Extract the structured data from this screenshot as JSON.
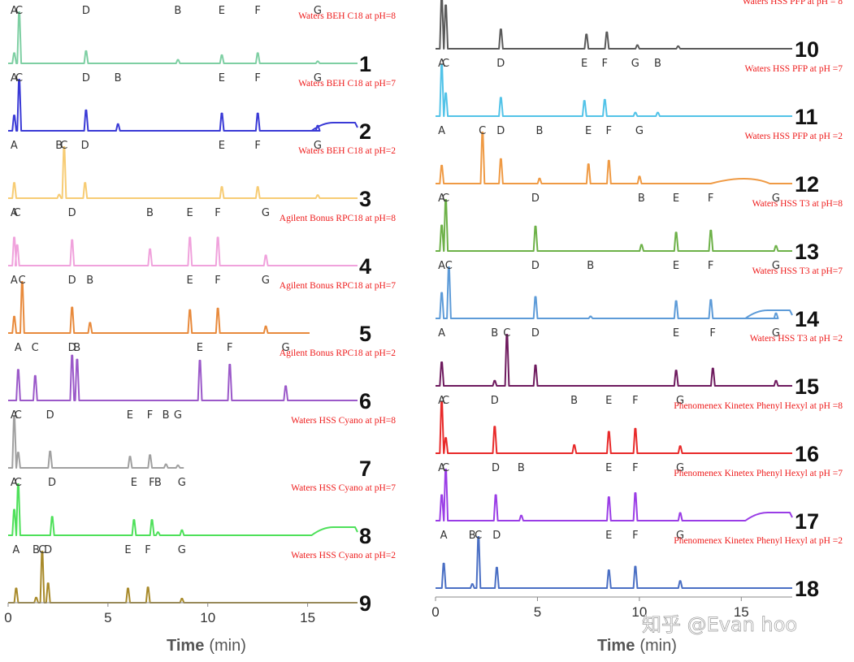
{
  "chart_data": {
    "type": "line",
    "title": "",
    "xlabel": "Time",
    "xlabel_unit": "(min)",
    "xlim": [
      0,
      17.5
    ],
    "xticks": [
      {
        "value": 0,
        "label": "0"
      },
      {
        "value": 5,
        "label": "5"
      },
      {
        "value": 10,
        "label": "10"
      },
      {
        "value": 15,
        "label": "15"
      }
    ],
    "panels": [
      {
        "number": "1",
        "label": "Waters BEH C18 at pH=8",
        "color": "#7ecfa3",
        "end": 17.5,
        "peaks": [
          {
            "name": "A",
            "t": 0.3,
            "h": 0.2
          },
          {
            "name": "C",
            "t": 0.55,
            "h": 1.0
          },
          {
            "name": "D",
            "t": 3.9,
            "h": 0.24
          },
          {
            "name": "B",
            "t": 8.5,
            "h": 0.07
          },
          {
            "name": "E",
            "t": 10.7,
            "h": 0.16
          },
          {
            "name": "F",
            "t": 12.5,
            "h": 0.2
          },
          {
            "name": "G",
            "t": 15.5,
            "h": 0.04
          }
        ]
      },
      {
        "number": "2",
        "label": "Waters BEH C18 at pH=7",
        "color": "#3a3ad6",
        "end": 17.5,
        "peaks": [
          {
            "name": "A",
            "t": 0.3,
            "h": 0.3
          },
          {
            "name": "C",
            "t": 0.55,
            "h": 1.0
          },
          {
            "name": "D",
            "t": 3.9,
            "h": 0.4
          },
          {
            "name": "B",
            "t": 5.5,
            "h": 0.13
          },
          {
            "name": "E",
            "t": 10.7,
            "h": 0.34
          },
          {
            "name": "F",
            "t": 12.5,
            "h": 0.34
          },
          {
            "name": "G",
            "t": 15.5,
            "h": 0.1
          }
        ]
      },
      {
        "number": "3",
        "label": "Waters BEH C18 at pH=2",
        "color": "#f7cc74",
        "end": 17.5,
        "peaks": [
          {
            "name": "A",
            "t": 0.3,
            "h": 0.3
          },
          {
            "name": "B",
            "t": 2.55,
            "h": 0.07
          },
          {
            "name": "C",
            "t": 2.8,
            "h": 1.0
          },
          {
            "name": "D",
            "t": 3.85,
            "h": 0.3
          },
          {
            "name": "E",
            "t": 10.7,
            "h": 0.22
          },
          {
            "name": "F",
            "t": 12.5,
            "h": 0.22
          },
          {
            "name": "G",
            "t": 15.5,
            "h": 0.06
          }
        ]
      },
      {
        "number": "4",
        "label": "Agilent Bonus RPC18 at pH=8",
        "color": "#f0a2dc",
        "end": 17.5,
        "peaks": [
          {
            "name": "A",
            "t": 0.3,
            "h": 0.55
          },
          {
            "name": "C",
            "t": 0.45,
            "h": 0.4
          },
          {
            "name": "D",
            "t": 3.2,
            "h": 0.5
          },
          {
            "name": "B",
            "t": 7.1,
            "h": 0.32
          },
          {
            "name": "E",
            "t": 9.1,
            "h": 0.55
          },
          {
            "name": "F",
            "t": 10.5,
            "h": 0.55
          },
          {
            "name": "G",
            "t": 12.9,
            "h": 0.2
          }
        ]
      },
      {
        "number": "5",
        "label": "Agilent Bonus RPC18 at pH=7",
        "color": "#e88a3c",
        "end": 15.1,
        "peaks": [
          {
            "name": "A",
            "t": 0.3,
            "h": 0.32
          },
          {
            "name": "C",
            "t": 0.7,
            "h": 1.0
          },
          {
            "name": "D",
            "t": 3.2,
            "h": 0.5
          },
          {
            "name": "B",
            "t": 4.1,
            "h": 0.2
          },
          {
            "name": "E",
            "t": 9.1,
            "h": 0.45
          },
          {
            "name": "F",
            "t": 10.5,
            "h": 0.48
          },
          {
            "name": "G",
            "t": 12.9,
            "h": 0.13
          }
        ]
      },
      {
        "number": "6",
        "label": "Agilent Bonus RPC18 at pH=2",
        "color": "#9b59c9",
        "end": 17.5,
        "peaks": [
          {
            "name": "A",
            "t": 0.5,
            "h": 0.6
          },
          {
            "name": "C",
            "t": 1.35,
            "h": 0.48
          },
          {
            "name": "D",
            "t": 3.2,
            "h": 0.88
          },
          {
            "name": "B",
            "t": 3.45,
            "h": 0.8
          },
          {
            "name": "E",
            "t": 9.6,
            "h": 0.78
          },
          {
            "name": "F",
            "t": 11.1,
            "h": 0.7
          },
          {
            "name": "G",
            "t": 13.9,
            "h": 0.28
          }
        ]
      },
      {
        "number": "7",
        "label": "Waters HSS Cyano at pH=8",
        "color": "#a0a0a0",
        "end": 8.8,
        "peaks": [
          {
            "name": "A",
            "t": 0.3,
            "h": 1.0
          },
          {
            "name": "C",
            "t": 0.5,
            "h": 0.3
          },
          {
            "name": "D",
            "t": 2.1,
            "h": 0.32
          },
          {
            "name": "E",
            "t": 6.1,
            "h": 0.22
          },
          {
            "name": "F",
            "t": 7.1,
            "h": 0.25
          },
          {
            "name": "B",
            "t": 7.9,
            "h": 0.07
          },
          {
            "name": "G",
            "t": 8.5,
            "h": 0.05
          }
        ]
      },
      {
        "number": "8",
        "label": "Waters HSS Cyano at pH=7",
        "color": "#4ee05a",
        "end": 17.5,
        "peaks": [
          {
            "name": "A",
            "t": 0.3,
            "h": 0.5
          },
          {
            "name": "C",
            "t": 0.5,
            "h": 1.0
          },
          {
            "name": "D",
            "t": 2.2,
            "h": 0.36
          },
          {
            "name": "E",
            "t": 6.3,
            "h": 0.3
          },
          {
            "name": "F",
            "t": 7.2,
            "h": 0.3
          },
          {
            "name": "B",
            "t": 7.5,
            "h": 0.06
          },
          {
            "name": "G",
            "t": 8.7,
            "h": 0.1
          }
        ]
      },
      {
        "number": "9",
        "label": "Waters HSS Cyano at pH=2",
        "color": "#a88a2a",
        "end": 17.5,
        "peaks": [
          {
            "name": "A",
            "t": 0.4,
            "h": 0.28
          },
          {
            "name": "B",
            "t": 1.4,
            "h": 0.1
          },
          {
            "name": "C",
            "t": 1.7,
            "h": 1.0
          },
          {
            "name": "D",
            "t": 2.0,
            "h": 0.38
          },
          {
            "name": "E",
            "t": 6.0,
            "h": 0.28
          },
          {
            "name": "F",
            "t": 7.0,
            "h": 0.3
          },
          {
            "name": "G",
            "t": 8.7,
            "h": 0.08
          }
        ]
      },
      {
        "number": "10",
        "label": "Waters HSS PFP at pH = 8",
        "color": "#5a5a5a",
        "end": 17.5,
        "peaks": [
          {
            "name": "A",
            "t": 0.3,
            "h": 1.0
          },
          {
            "name": "C",
            "t": 0.5,
            "h": 0.85
          },
          {
            "name": "D",
            "t": 3.2,
            "h": 0.38
          },
          {
            "name": "E",
            "t": 7.4,
            "h": 0.28
          },
          {
            "name": "F",
            "t": 8.4,
            "h": 0.32
          },
          {
            "name": "G",
            "t": 9.9,
            "h": 0.07
          },
          {
            "name": "B",
            "t": 11.9,
            "h": 0.05
          }
        ]
      },
      {
        "number": "11",
        "label": "Waters HSS PFP at pH =7",
        "color": "#52c3e8",
        "end": 17.5,
        "peaks": [
          {
            "name": "A",
            "t": 0.3,
            "h": 1.0
          },
          {
            "name": "C",
            "t": 0.5,
            "h": 0.45
          },
          {
            "name": "D",
            "t": 3.2,
            "h": 0.36
          },
          {
            "name": "E",
            "t": 7.3,
            "h": 0.3
          },
          {
            "name": "F",
            "t": 8.3,
            "h": 0.32
          },
          {
            "name": "G",
            "t": 9.8,
            "h": 0.07
          },
          {
            "name": "B",
            "t": 10.9,
            "h": 0.07
          }
        ]
      },
      {
        "number": "12",
        "label": "Waters HSS PFP at pH =2",
        "color": "#ef9a44",
        "end": 17.5,
        "peaks": [
          {
            "name": "A",
            "t": 0.3,
            "h": 0.35
          },
          {
            "name": "C",
            "t": 2.3,
            "h": 1.0
          },
          {
            "name": "D",
            "t": 3.2,
            "h": 0.48
          },
          {
            "name": "B",
            "t": 5.1,
            "h": 0.1
          },
          {
            "name": "E",
            "t": 7.5,
            "h": 0.38
          },
          {
            "name": "F",
            "t": 8.5,
            "h": 0.45
          },
          {
            "name": "G",
            "t": 10.0,
            "h": 0.14
          }
        ]
      },
      {
        "number": "13",
        "label": "Waters HSS T3 at pH=8",
        "color": "#6db148",
        "end": 17.5,
        "peaks": [
          {
            "name": "A",
            "t": 0.3,
            "h": 0.5
          },
          {
            "name": "C",
            "t": 0.5,
            "h": 1.0
          },
          {
            "name": "D",
            "t": 4.9,
            "h": 0.48
          },
          {
            "name": "B",
            "t": 10.1,
            "h": 0.12
          },
          {
            "name": "E",
            "t": 11.8,
            "h": 0.36
          },
          {
            "name": "F",
            "t": 13.5,
            "h": 0.4
          },
          {
            "name": "G",
            "t": 16.7,
            "h": 0.1
          }
        ]
      },
      {
        "number": "14",
        "label": "Waters HSS T3 at pH=7",
        "color": "#5d9bd8",
        "end": 17.5,
        "peaks": [
          {
            "name": "A",
            "t": 0.3,
            "h": 0.5
          },
          {
            "name": "C",
            "t": 0.65,
            "h": 1.0
          },
          {
            "name": "D",
            "t": 4.9,
            "h": 0.42
          },
          {
            "name": "B",
            "t": 7.6,
            "h": 0.04
          },
          {
            "name": "E",
            "t": 11.8,
            "h": 0.34
          },
          {
            "name": "F",
            "t": 13.5,
            "h": 0.36
          },
          {
            "name": "G",
            "t": 16.7,
            "h": 0.1
          }
        ]
      },
      {
        "number": "15",
        "label": "Waters HSS T3 at pH =2",
        "color": "#6e1a5e",
        "end": 17.5,
        "peaks": [
          {
            "name": "A",
            "t": 0.3,
            "h": 0.46
          },
          {
            "name": "B",
            "t": 2.9,
            "h": 0.1
          },
          {
            "name": "C",
            "t": 3.5,
            "h": 1.0
          },
          {
            "name": "D",
            "t": 4.9,
            "h": 0.4
          },
          {
            "name": "E",
            "t": 11.8,
            "h": 0.3
          },
          {
            "name": "F",
            "t": 13.6,
            "h": 0.34
          },
          {
            "name": "G",
            "t": 16.7,
            "h": 0.1
          }
        ]
      },
      {
        "number": "16",
        "label": "Phenomenex Kinetex Phenyl Hexyl at pH =8",
        "color": "#e82a2a",
        "end": 17.5,
        "peaks": [
          {
            "name": "A",
            "t": 0.3,
            "h": 1.0
          },
          {
            "name": "C",
            "t": 0.5,
            "h": 0.3
          },
          {
            "name": "D",
            "t": 2.9,
            "h": 0.52
          },
          {
            "name": "B",
            "t": 6.8,
            "h": 0.16
          },
          {
            "name": "E",
            "t": 8.5,
            "h": 0.42
          },
          {
            "name": "F",
            "t": 9.8,
            "h": 0.48
          },
          {
            "name": "G",
            "t": 12.0,
            "h": 0.14
          }
        ]
      },
      {
        "number": "17",
        "label": "Phenomenex Kinetex Phenyl Hexyl at pH =7",
        "color": "#9a3de6",
        "end": 17.5,
        "peaks": [
          {
            "name": "A",
            "t": 0.3,
            "h": 0.5
          },
          {
            "name": "C",
            "t": 0.5,
            "h": 1.0
          },
          {
            "name": "D",
            "t": 2.95,
            "h": 0.5
          },
          {
            "name": "B",
            "t": 4.2,
            "h": 0.1
          },
          {
            "name": "E",
            "t": 8.5,
            "h": 0.46
          },
          {
            "name": "F",
            "t": 9.8,
            "h": 0.54
          },
          {
            "name": "G",
            "t": 12.0,
            "h": 0.15
          }
        ]
      },
      {
        "number": "18",
        "label": "Phenomenex Kinetex Phenyl Hexyl at pH =2",
        "color": "#4a6fc4",
        "end": 17.5,
        "peaks": [
          {
            "name": "A",
            "t": 0.4,
            "h": 0.48
          },
          {
            "name": "B",
            "t": 1.8,
            "h": 0.08
          },
          {
            "name": "C",
            "t": 2.1,
            "h": 1.0
          },
          {
            "name": "D",
            "t": 3.0,
            "h": 0.4
          },
          {
            "name": "E",
            "t": 8.5,
            "h": 0.35
          },
          {
            "name": "F",
            "t": 9.8,
            "h": 0.42
          },
          {
            "name": "G",
            "t": 12.0,
            "h": 0.14
          }
        ]
      }
    ]
  },
  "watermark": "知乎 @Evan hoo"
}
